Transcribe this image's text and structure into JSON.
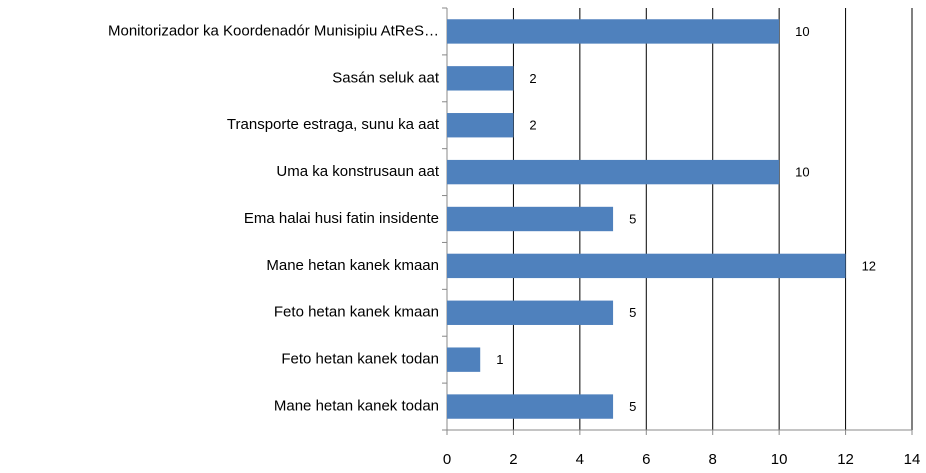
{
  "chart_data": {
    "type": "bar",
    "orientation": "horizontal",
    "categories": [
      "Monitorizador ka Koordenadór Munisipiu AtReS…",
      "Sasán seluk aat",
      "Transporte estraga, sunu ka aat",
      "Uma ka konstrusaun aat",
      "Ema halai husi fatin insidente",
      "Mane hetan kanek kmaan",
      "Feto hetan kanek kmaan",
      "Feto hetan kanek todan",
      "Mane hetan kanek todan"
    ],
    "values": [
      10,
      2,
      2,
      10,
      5,
      12,
      5,
      1,
      5
    ],
    "color": "#4f81bd",
    "xlim": [
      0,
      14
    ],
    "xticks": [
      0,
      2,
      4,
      6,
      8,
      10,
      12,
      14
    ],
    "grid": true
  }
}
